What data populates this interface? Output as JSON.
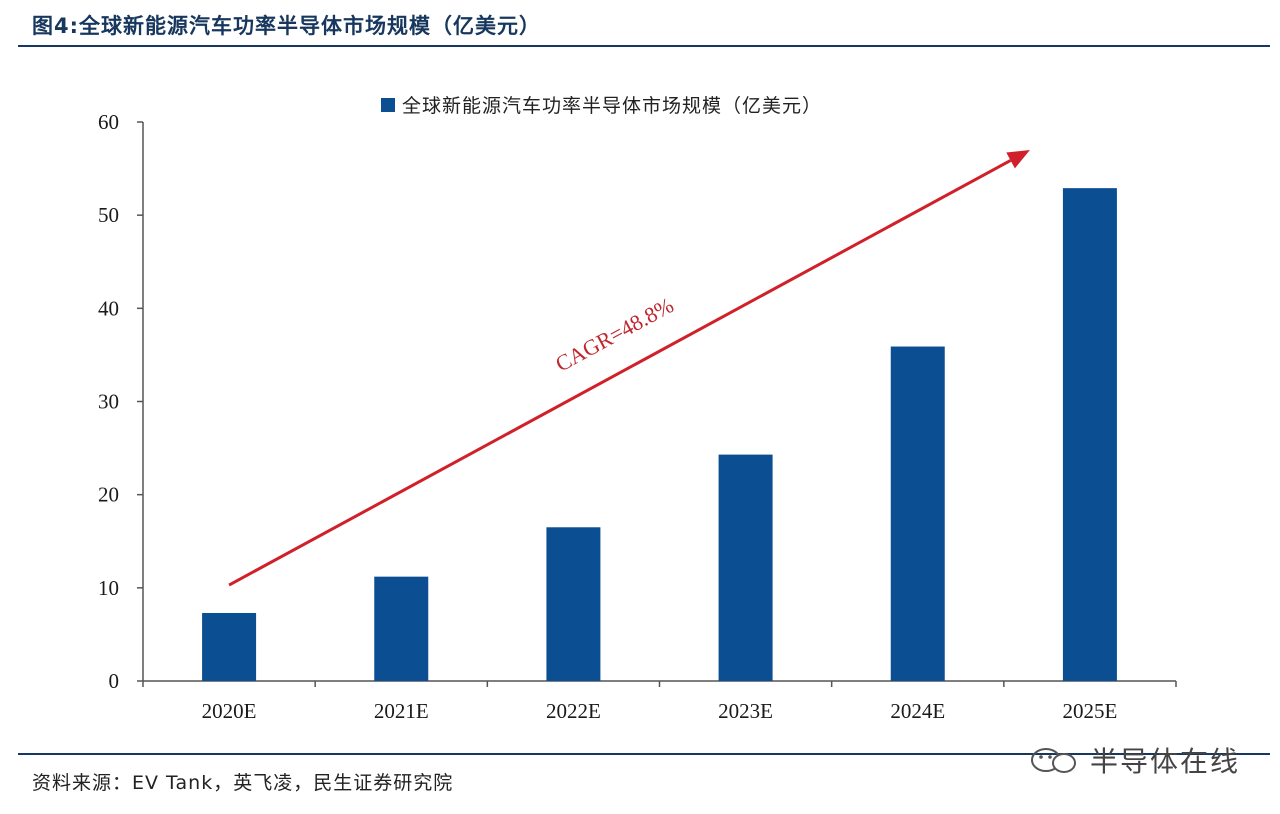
{
  "figure": {
    "title": "图4:全球新能源汽车功率半导体市场规模（亿美元）",
    "source": "资料来源：EV Tank，英飞凌，民生证券研究院",
    "watermark": "半导体在线"
  },
  "colors": {
    "bar": "#0b4f92",
    "accent_line": "#17375e",
    "arrow": "#d0202a"
  },
  "chart_data": {
    "type": "bar",
    "categories": [
      "2020E",
      "2021E",
      "2022E",
      "2023E",
      "2024E",
      "2025E"
    ],
    "series": [
      {
        "name": "全球新能源汽车功率半导体市场规模（亿美元）",
        "values": [
          7.3,
          11.2,
          16.5,
          24.3,
          35.9,
          52.9
        ]
      }
    ],
    "ylim": [
      0,
      60
    ],
    "yticks": [
      0,
      10,
      20,
      30,
      40,
      50,
      60
    ],
    "legend": "top-center",
    "grid": false,
    "annotation": {
      "text": "CAGR=48.8%",
      "from": {
        "category": "2020E",
        "value": 10.3
      },
      "to": {
        "category": "2025E",
        "value": 57.0
      }
    }
  }
}
